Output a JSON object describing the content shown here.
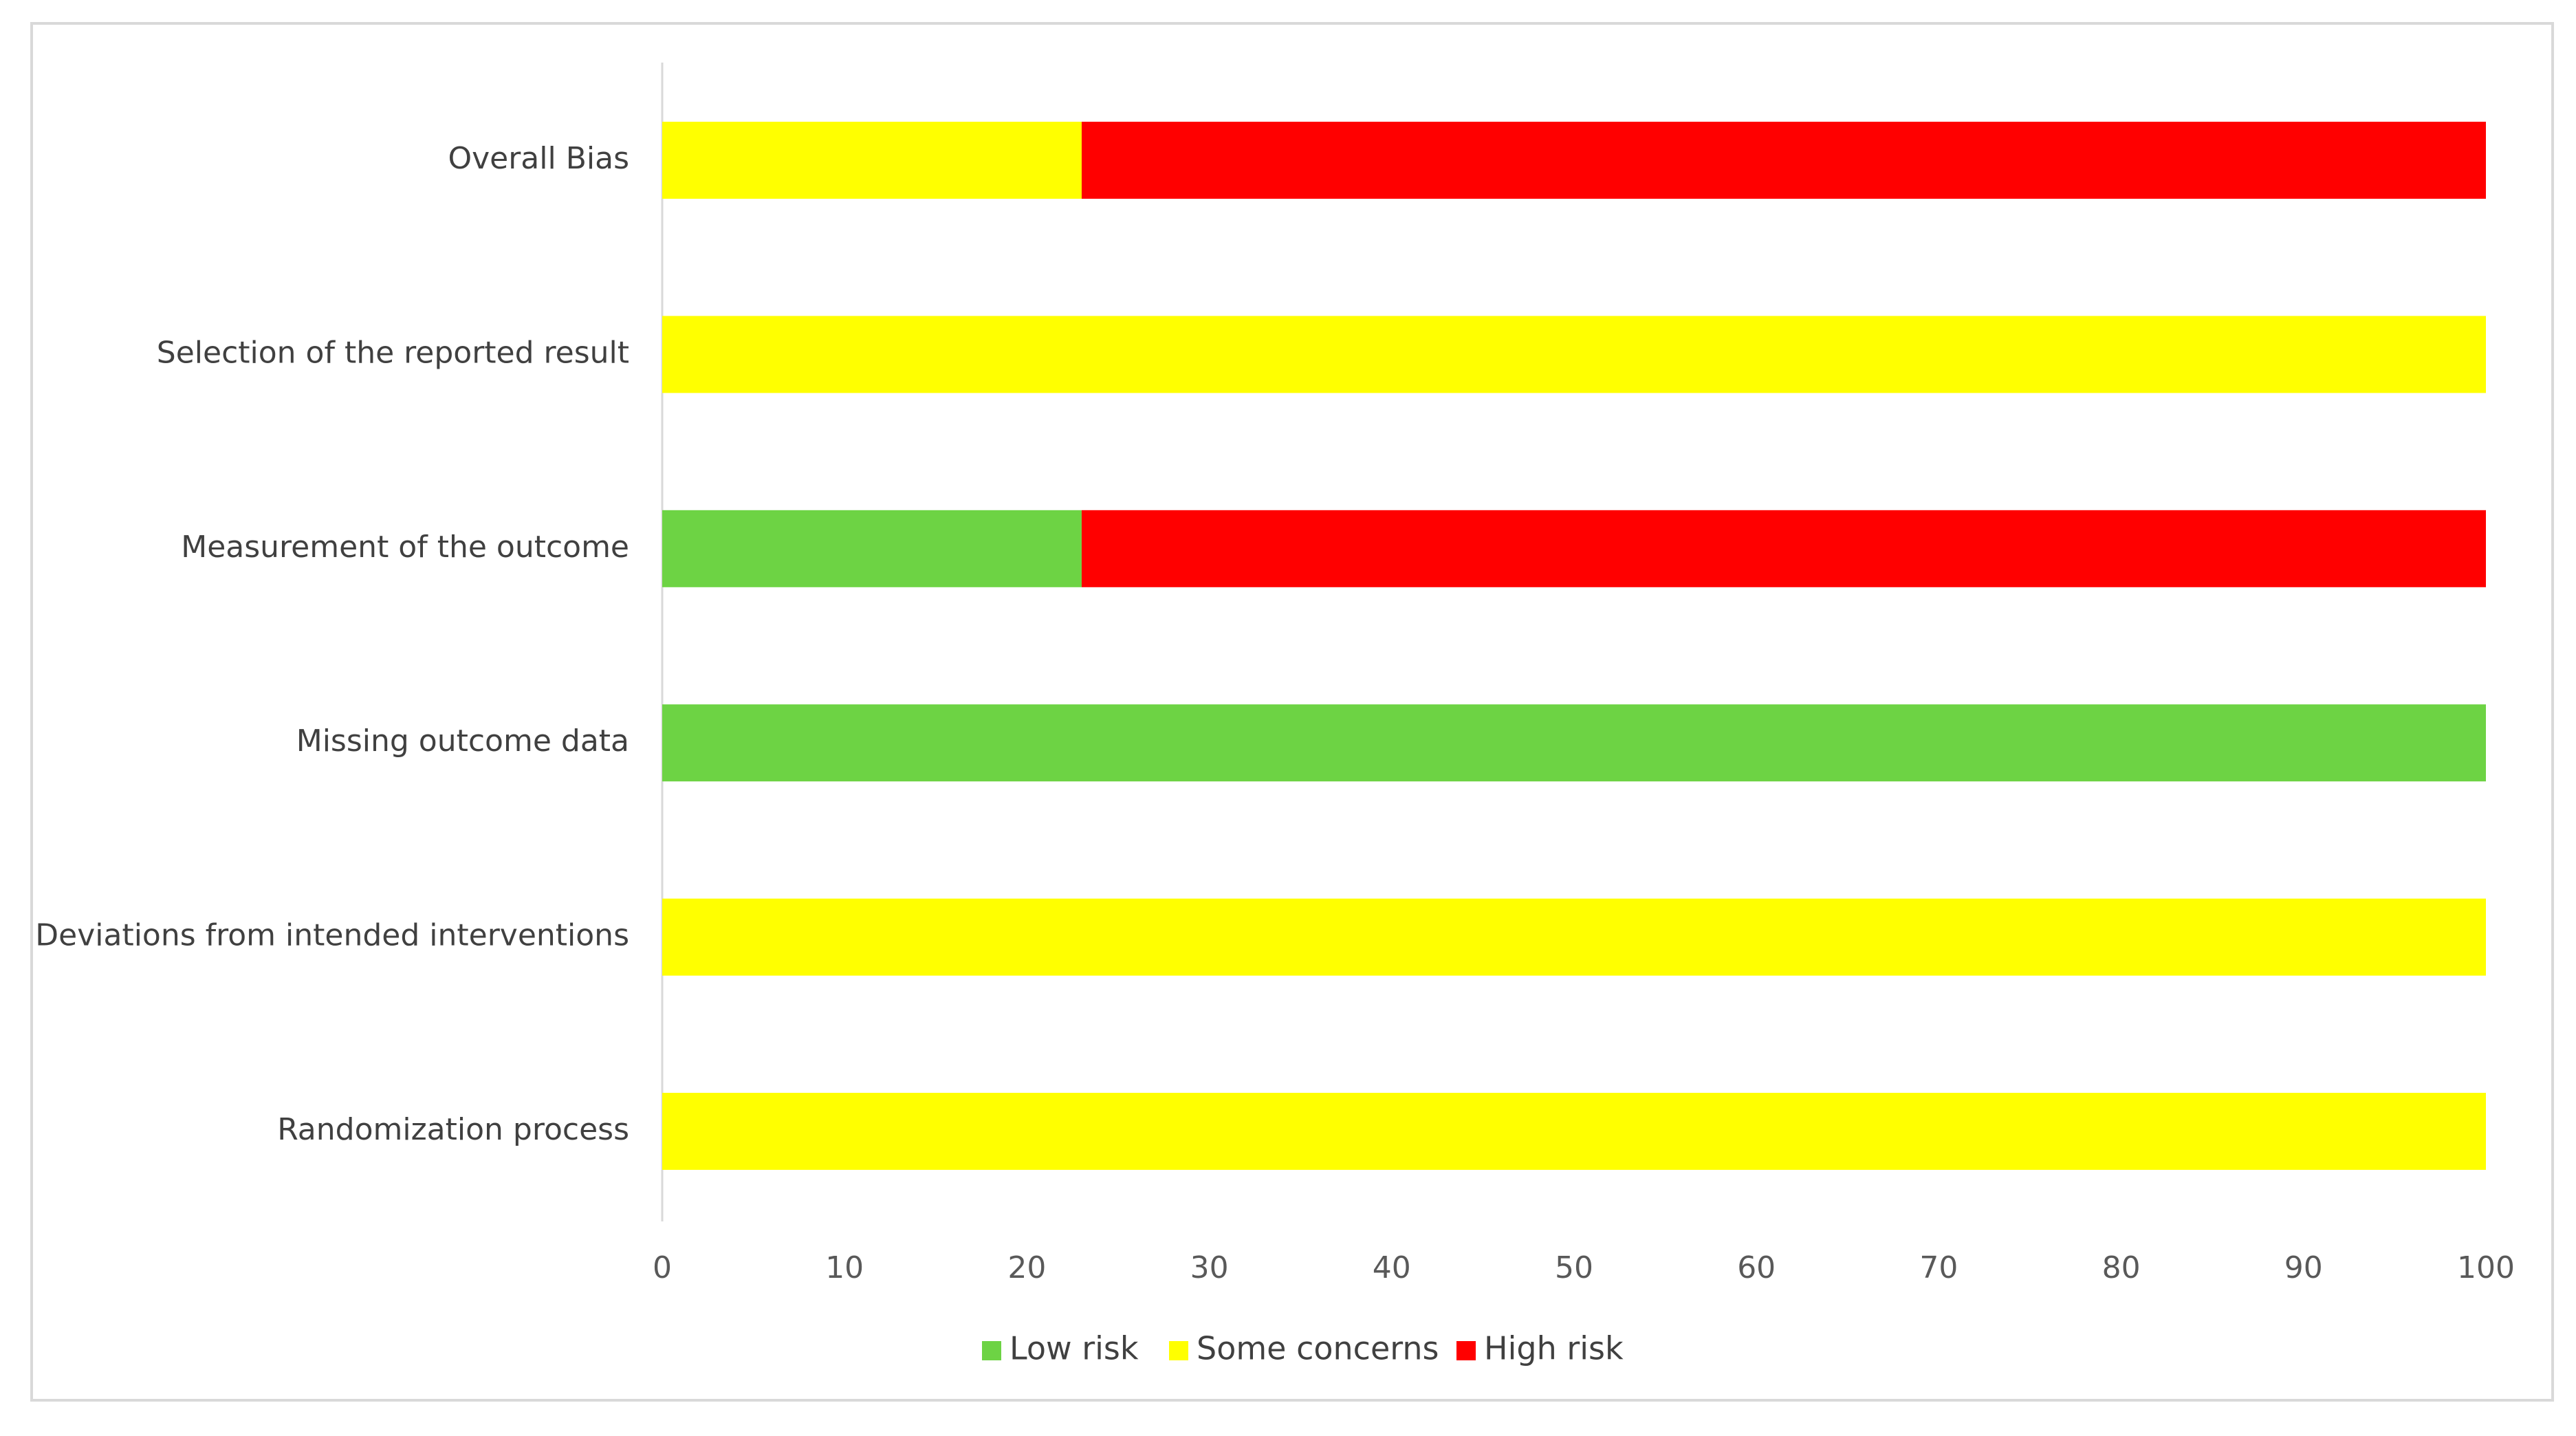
{
  "chart_data": {
    "type": "bar",
    "orientation": "horizontal",
    "stacked": true,
    "categories": [
      "Overall Bias",
      "Selection of the reported result",
      "Measurement of the outcome",
      "Missing outcome data",
      "Deviations from intended interventions",
      "Randomization process"
    ],
    "series": [
      {
        "name": "Low risk",
        "color": "#6dd344",
        "values": [
          0,
          0,
          23,
          100,
          0,
          0
        ]
      },
      {
        "name": "Some concerns",
        "color": "#ffff00",
        "values": [
          23,
          100,
          0,
          0,
          100,
          100
        ]
      },
      {
        "name": "High risk",
        "color": "#ff0000",
        "values": [
          77,
          0,
          77,
          0,
          0,
          0
        ]
      }
    ],
    "x_ticks": [
      "0",
      "10",
      "20",
      "30",
      "40",
      "50",
      "60",
      "70",
      "80",
      "90",
      "100"
    ],
    "xlim": [
      0,
      100
    ],
    "grid": false,
    "legend_position": "bottom"
  }
}
